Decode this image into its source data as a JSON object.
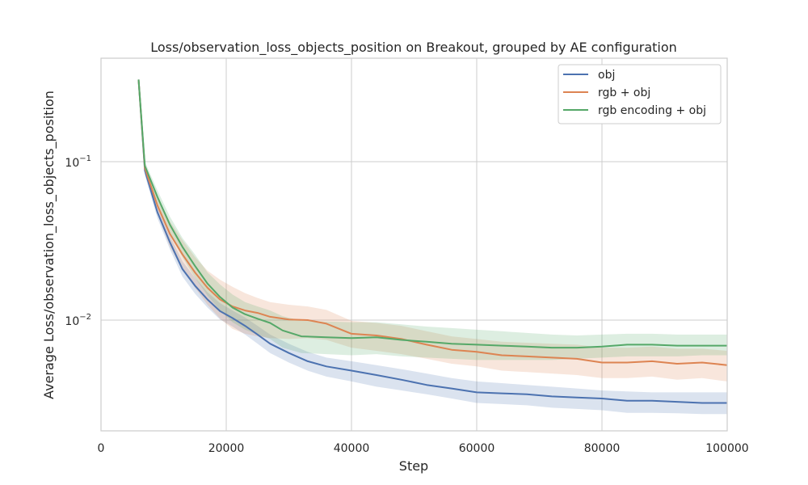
{
  "chart_data": {
    "type": "line",
    "title": "Loss/observation_loss_objects_position on Breakout, grouped by AE configuration",
    "xlabel": "Step",
    "ylabel": "Average Loss/observation_loss_objects_position",
    "xlim": [
      0,
      100000
    ],
    "ylim": [
      0.002,
      0.45
    ],
    "yscale": "log",
    "x_ticks": [
      0,
      20000,
      40000,
      60000,
      80000,
      100000
    ],
    "x_tick_labels": [
      "0",
      "20000",
      "40000",
      "60000",
      "80000",
      "100000"
    ],
    "y_ticks": [
      0.1,
      0.01
    ],
    "y_tick_labels": [
      {
        "base": "10",
        "exp": "−1"
      },
      {
        "base": "10",
        "exp": "−2"
      }
    ],
    "grid": true,
    "legend_position": "top-right",
    "series": [
      {
        "name": "obj",
        "color": "#4c72b0",
        "x": [
          6000,
          7000,
          9000,
          11000,
          13000,
          15000,
          17000,
          19000,
          21000,
          23000,
          25000,
          27000,
          30000,
          33000,
          36000,
          40000,
          44000,
          48000,
          52000,
          56000,
          60000,
          64000,
          68000,
          72000,
          76000,
          80000,
          84000,
          88000,
          92000,
          96000,
          100000
        ],
        "y": [
          0.33,
          0.088,
          0.048,
          0.031,
          0.021,
          0.0165,
          0.0135,
          0.0114,
          0.0103,
          0.0092,
          0.0081,
          0.0071,
          0.0062,
          0.0055,
          0.0051,
          0.0048,
          0.0045,
          0.0042,
          0.0039,
          0.0037,
          0.0035,
          0.00345,
          0.0034,
          0.0033,
          0.00325,
          0.0032,
          0.0031,
          0.0031,
          0.00305,
          0.003,
          0.003
        ],
        "lower": [
          0.33,
          0.082,
          0.044,
          0.028,
          0.0188,
          0.0147,
          0.012,
          0.0101,
          0.0091,
          0.0081,
          0.0071,
          0.0062,
          0.0054,
          0.0048,
          0.0044,
          0.0041,
          0.0038,
          0.0036,
          0.0034,
          0.0032,
          0.003,
          0.00295,
          0.0029,
          0.0028,
          0.00275,
          0.0027,
          0.0026,
          0.0026,
          0.00258,
          0.00255,
          0.00255
        ],
        "upper": [
          0.33,
          0.095,
          0.053,
          0.034,
          0.0235,
          0.0185,
          0.015,
          0.0128,
          0.0115,
          0.0104,
          0.0092,
          0.0081,
          0.0071,
          0.0063,
          0.0058,
          0.0055,
          0.0052,
          0.0049,
          0.0046,
          0.0043,
          0.0041,
          0.004,
          0.0039,
          0.0038,
          0.0037,
          0.0036,
          0.00355,
          0.0035,
          0.0035,
          0.0035,
          0.0035
        ]
      },
      {
        "name": "rgb + obj",
        "color": "#dd8452",
        "x": [
          6000,
          7000,
          9000,
          11000,
          13000,
          15000,
          17000,
          19000,
          21000,
          23000,
          25000,
          27000,
          30000,
          33000,
          36000,
          40000,
          44000,
          48000,
          52000,
          56000,
          60000,
          64000,
          68000,
          72000,
          76000,
          80000,
          84000,
          88000,
          92000,
          96000,
          100000
        ],
        "y": [
          0.33,
          0.091,
          0.053,
          0.035,
          0.026,
          0.02,
          0.016,
          0.0135,
          0.0122,
          0.0115,
          0.0111,
          0.0105,
          0.0101,
          0.01,
          0.0095,
          0.0082,
          0.008,
          0.0076,
          0.007,
          0.0065,
          0.0063,
          0.006,
          0.0059,
          0.0058,
          0.0057,
          0.0054,
          0.0054,
          0.0055,
          0.0053,
          0.0054,
          0.0052
        ],
        "lower": [
          0.33,
          0.085,
          0.047,
          0.029,
          0.021,
          0.016,
          0.0125,
          0.0102,
          0.0088,
          0.0082,
          0.0079,
          0.0077,
          0.0076,
          0.0077,
          0.0075,
          0.0067,
          0.0064,
          0.0061,
          0.0057,
          0.0053,
          0.0051,
          0.0048,
          0.0047,
          0.0046,
          0.0045,
          0.0043,
          0.0043,
          0.0044,
          0.0042,
          0.0043,
          0.0041
        ],
        "upper": [
          0.33,
          0.098,
          0.06,
          0.042,
          0.032,
          0.025,
          0.0205,
          0.018,
          0.0162,
          0.0148,
          0.0138,
          0.013,
          0.0125,
          0.0122,
          0.0116,
          0.0099,
          0.0096,
          0.0092,
          0.0085,
          0.0079,
          0.0076,
          0.0073,
          0.0072,
          0.0071,
          0.007,
          0.0067,
          0.0067,
          0.0068,
          0.0066,
          0.0066,
          0.0064
        ]
      },
      {
        "name": "rgb encoding + obj",
        "color": "#55a868",
        "x": [
          6000,
          7000,
          9000,
          11000,
          13000,
          15000,
          17000,
          19000,
          21000,
          23000,
          25000,
          27000,
          29000,
          32000,
          36000,
          40000,
          44000,
          48000,
          52000,
          56000,
          60000,
          64000,
          68000,
          72000,
          76000,
          80000,
          84000,
          88000,
          92000,
          96000,
          100000
        ],
        "y": [
          0.33,
          0.094,
          0.06,
          0.04,
          0.029,
          0.022,
          0.017,
          0.014,
          0.012,
          0.0109,
          0.0102,
          0.0096,
          0.0086,
          0.0079,
          0.0078,
          0.0077,
          0.0078,
          0.0075,
          0.0073,
          0.0071,
          0.007,
          0.0069,
          0.0068,
          0.0067,
          0.0067,
          0.0068,
          0.007,
          0.007,
          0.0069,
          0.0069,
          0.0069
        ],
        "lower": [
          0.33,
          0.088,
          0.054,
          0.035,
          0.025,
          0.0185,
          0.0143,
          0.0115,
          0.0097,
          0.0087,
          0.0081,
          0.0076,
          0.0067,
          0.0062,
          0.0061,
          0.006,
          0.0061,
          0.0059,
          0.0058,
          0.0057,
          0.0056,
          0.0056,
          0.0056,
          0.0056,
          0.0057,
          0.0058,
          0.0059,
          0.0059,
          0.0059,
          0.006,
          0.006
        ],
        "upper": [
          0.33,
          0.1,
          0.066,
          0.045,
          0.033,
          0.026,
          0.02,
          0.0168,
          0.0145,
          0.013,
          0.0122,
          0.0115,
          0.0106,
          0.0099,
          0.0098,
          0.0097,
          0.0097,
          0.0094,
          0.0091,
          0.0089,
          0.0087,
          0.0085,
          0.0083,
          0.0081,
          0.008,
          0.0081,
          0.0082,
          0.0082,
          0.0081,
          0.0081,
          0.0081
        ]
      }
    ]
  }
}
